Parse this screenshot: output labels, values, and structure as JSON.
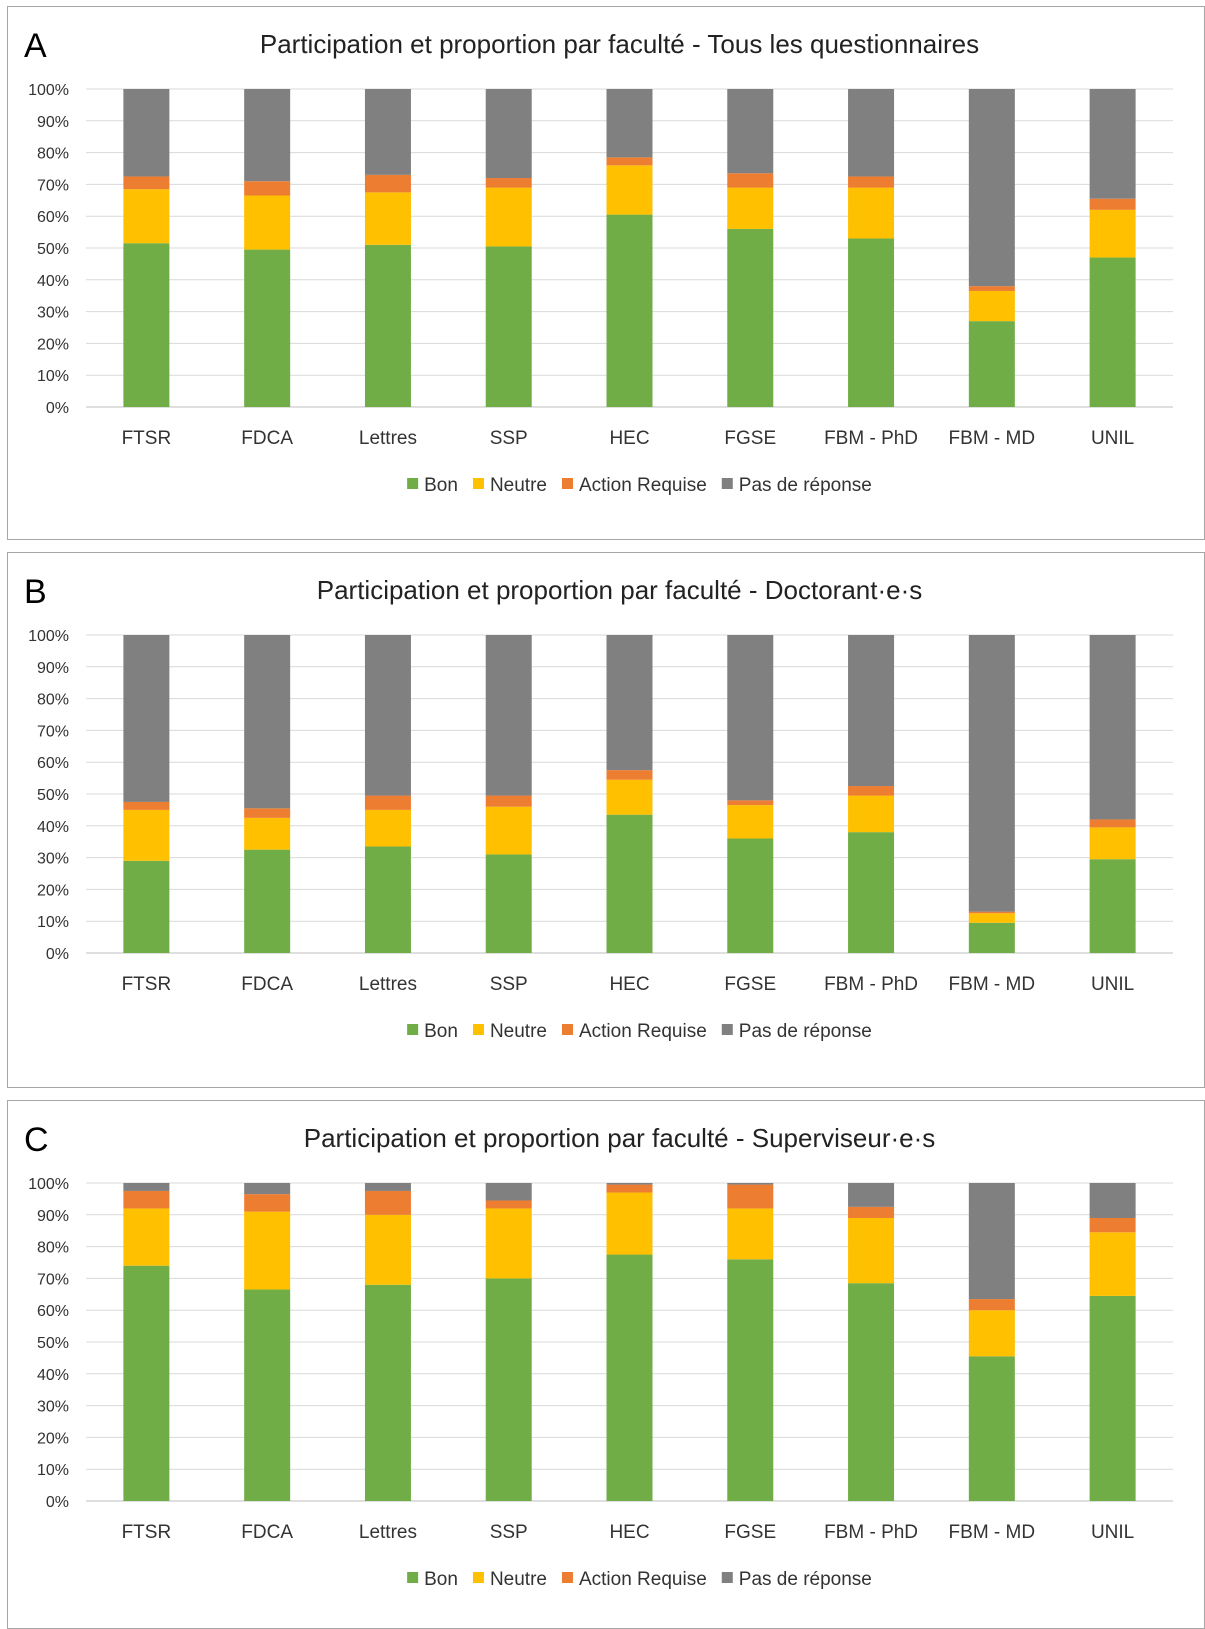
{
  "chart_data": [
    {
      "type": "bar",
      "stacked": true,
      "panel_label": "A",
      "title": "Participation et proportion par faculté - Tous les questionnaires",
      "categories": [
        "FTSR",
        "FDCA",
        "Lettres",
        "SSP",
        "HEC",
        "FGSE",
        "FBM - PhD",
        "FBM - MD",
        "UNIL"
      ],
      "y_ticks": [
        "0%",
        "10%",
        "20%",
        "30%",
        "40%",
        "50%",
        "60%",
        "70%",
        "80%",
        "90%",
        "100%"
      ],
      "ylim": [
        0,
        100
      ],
      "grid": true,
      "legend_position": "bottom",
      "series": [
        {
          "name": "Bon",
          "color": "#70ad47",
          "values": [
            51.5,
            49.5,
            51,
            50.5,
            60.5,
            56,
            53,
            27,
            47
          ]
        },
        {
          "name": "Neutre",
          "color": "#ffc000",
          "values": [
            17,
            17,
            16.5,
            18.5,
            15.5,
            13,
            16,
            9.5,
            15
          ]
        },
        {
          "name": "Action Requise",
          "color": "#ed7d31",
          "values": [
            4,
            4.5,
            5.5,
            3,
            2.5,
            4.5,
            3.5,
            1.5,
            3.5
          ]
        },
        {
          "name": "Pas de réponse",
          "color": "#808080",
          "values": [
            27.5,
            29,
            27,
            28,
            21.5,
            26.5,
            27.5,
            62,
            34.5
          ]
        }
      ]
    },
    {
      "type": "bar",
      "stacked": true,
      "panel_label": "B",
      "title": "Participation et proportion par faculté - Doctorant·e·s",
      "categories": [
        "FTSR",
        "FDCA",
        "Lettres",
        "SSP",
        "HEC",
        "FGSE",
        "FBM - PhD",
        "FBM - MD",
        "UNIL"
      ],
      "y_ticks": [
        "0%",
        "10%",
        "20%",
        "30%",
        "40%",
        "50%",
        "60%",
        "70%",
        "80%",
        "90%",
        "100%"
      ],
      "ylim": [
        0,
        100
      ],
      "grid": true,
      "legend_position": "bottom",
      "series": [
        {
          "name": "Bon",
          "color": "#70ad47",
          "values": [
            29,
            32.5,
            33.5,
            31,
            43.5,
            36,
            38,
            9.5,
            29.5
          ]
        },
        {
          "name": "Neutre",
          "color": "#ffc000",
          "values": [
            16,
            10,
            11.5,
            15,
            11,
            10.5,
            11.5,
            3,
            10
          ]
        },
        {
          "name": "Action Requise",
          "color": "#ed7d31",
          "values": [
            2.5,
            3,
            4.5,
            3.5,
            3,
            1.5,
            3,
            0.5,
            2.5
          ]
        },
        {
          "name": "Pas de réponse",
          "color": "#808080",
          "values": [
            52.5,
            54.5,
            50.5,
            50.5,
            42.5,
            52,
            47.5,
            87,
            58
          ]
        }
      ]
    },
    {
      "type": "bar",
      "stacked": true,
      "panel_label": "C",
      "title": "Participation et proportion par faculté - Superviseur·e·s",
      "categories": [
        "FTSR",
        "FDCA",
        "Lettres",
        "SSP",
        "HEC",
        "FGSE",
        "FBM - PhD",
        "FBM - MD",
        "UNIL"
      ],
      "y_ticks": [
        "0%",
        "10%",
        "20%",
        "30%",
        "40%",
        "50%",
        "60%",
        "70%",
        "80%",
        "90%",
        "100%"
      ],
      "ylim": [
        0,
        100
      ],
      "grid": true,
      "legend_position": "bottom",
      "series": [
        {
          "name": "Bon",
          "color": "#70ad47",
          "values": [
            74,
            66.5,
            68,
            70,
            77.5,
            76,
            68.5,
            45.5,
            64.5
          ]
        },
        {
          "name": "Neutre",
          "color": "#ffc000",
          "values": [
            18,
            24.5,
            22,
            22,
            19.5,
            16,
            20.5,
            14.5,
            20
          ]
        },
        {
          "name": "Action Requise",
          "color": "#ed7d31",
          "values": [
            5.5,
            5.5,
            7.5,
            2.5,
            2.5,
            7.5,
            3.5,
            3.5,
            4.5
          ]
        },
        {
          "name": "Pas de réponse",
          "color": "#808080",
          "values": [
            2.5,
            3.5,
            2.5,
            5.5,
            0.5,
            0.5,
            7.5,
            36.5,
            11
          ]
        }
      ]
    }
  ]
}
